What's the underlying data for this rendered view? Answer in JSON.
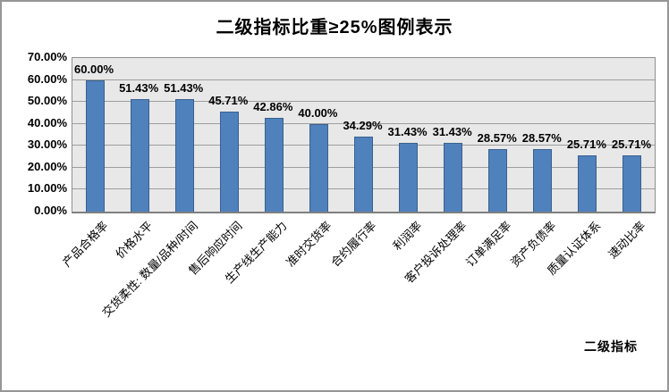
{
  "chart_data": {
    "type": "bar",
    "title": "二级指标比重≥25%图例表示",
    "xlabel": "二级指标",
    "ylabel": "",
    "categories": [
      "产品合格率",
      "价格水平",
      "交货柔性: 数量/品种/时间",
      "售后响应时间",
      "生产线生产能力",
      "准时交货率",
      "合约履行率",
      "利润率",
      "客户投诉处理率",
      "订单满足率",
      "资产负债率",
      "质量认证体系",
      "速动比率"
    ],
    "values": [
      60.0,
      51.43,
      51.43,
      45.71,
      42.86,
      40.0,
      34.29,
      31.43,
      31.43,
      28.57,
      28.57,
      25.71,
      25.71
    ],
    "data_labels": [
      "60.00%",
      "51.43%",
      "51.43%",
      "45.71%",
      "42.86%",
      "40.00%",
      "34.29%",
      "31.43%",
      "31.43%",
      "28.57%",
      "28.57%",
      "25.71%",
      "25.71%"
    ],
    "ylim": [
      0,
      70
    ],
    "y_tick_step": 10,
    "y_ticks": [
      "0.00%",
      "10.00%",
      "20.00%",
      "30.00%",
      "40.00%",
      "50.00%",
      "60.00%",
      "70.00%"
    ],
    "grid": true,
    "legend": false,
    "colors": {
      "bar_fill": "#4F81BD",
      "bar_border": "#38618F",
      "plot_background": "#E8E8E8",
      "gridline": "#9D9D9D",
      "chart_border": "#969696",
      "text": "#000000"
    }
  }
}
